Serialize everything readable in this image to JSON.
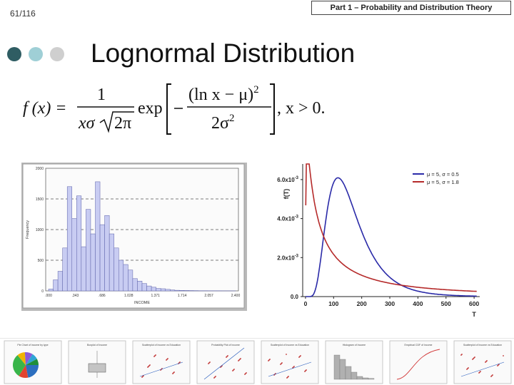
{
  "slide": {
    "page_number": "61/116",
    "header": "Part 1 – Probability and Distribution Theory",
    "title": "Lognormal Distribution",
    "bullet_colors": [
      "#2f5d63",
      "#9fcfd6",
      "#cfcfcf"
    ]
  },
  "formula": {
    "lhs": "f (x) =",
    "num": "1",
    "den_x": "xσ",
    "den_rad": "2π",
    "exp": "exp",
    "inner_num": "(ln x − μ)",
    "inner_num_sup": "2",
    "inner_den": "2σ",
    "inner_den_sup": "2",
    "tail": ", x > 0."
  },
  "chart_data": [
    {
      "type": "bar",
      "xlabel": "INCOME",
      "ylabel": "Frequency",
      "x_ticks": [
        ".000",
        ".343",
        ".686",
        "1.028",
        "1.371",
        "1.714",
        "2.057",
        "2.400"
      ],
      "y_ticks": [
        "0",
        "500",
        "1000",
        "1500",
        "2000"
      ],
      "ylim": [
        0,
        2000
      ],
      "grid": "dashed horizontal",
      "bar_color": "#c8ccf2",
      "values": [
        30,
        180,
        320,
        700,
        1700,
        1180,
        1550,
        720,
        1330,
        930,
        1780,
        1080,
        1230,
        930,
        700,
        500,
        430,
        340,
        200,
        160,
        120,
        80,
        60,
        40,
        35,
        25,
        15,
        10,
        8,
        6,
        5,
        4,
        3,
        3,
        2,
        2,
        2,
        1,
        1,
        1
      ]
    },
    {
      "type": "line",
      "ylabel": "f(T)",
      "xlabel": "T",
      "x_ticks": [
        "0",
        "100",
        "200",
        "300",
        "400",
        "500",
        "600"
      ],
      "y_ticks": [
        "0.0",
        "2.0x10",
        "4.0x10",
        "6.0x10"
      ],
      "y_tick_exp": [
        "",
        "-3",
        "-3",
        "-3"
      ],
      "xlim": [
        -10,
        620
      ],
      "ylim": [
        0,
        0.0068
      ],
      "legend_position": "top-right",
      "series": [
        {
          "name": "μ = 5, σ = 0.5",
          "mu": 5,
          "sigma": 0.5,
          "color": "#2a2aa8"
        },
        {
          "name": "μ = 5, σ = 1.8",
          "mu": 5,
          "sigma": 1.8,
          "color": "#b52a2a"
        }
      ]
    }
  ],
  "thumbnails": {
    "titles": [
      "Pie Chart of Income by type",
      "Boxplot of Income",
      "Scatterplot of Income vs Education",
      "Probability Plot of Income",
      "Scatterplot of Income vs Education",
      "Histogram of Income",
      "Empirical CDF of Income",
      "Scatterplot of Income vs Education"
    ]
  }
}
